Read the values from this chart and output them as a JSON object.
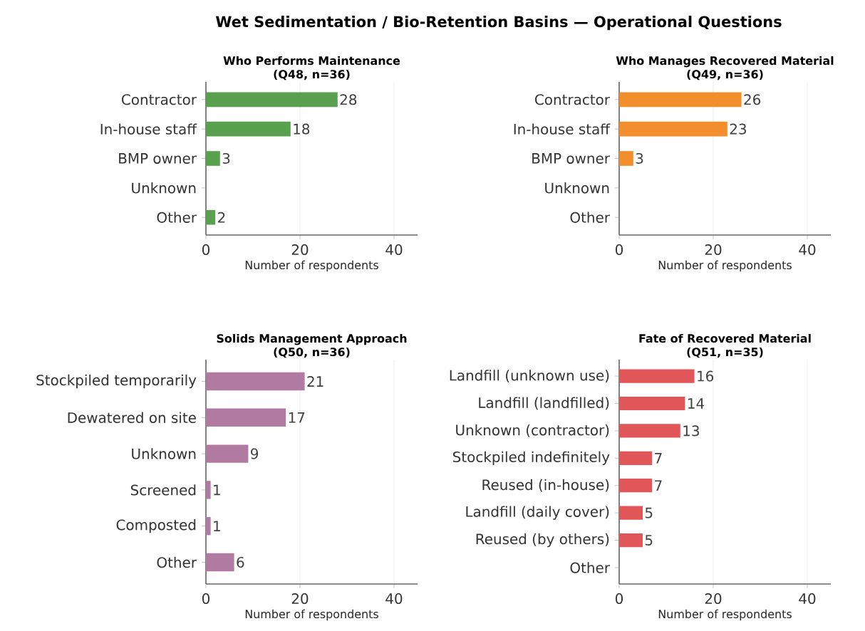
{
  "chart_data": [
    {
      "type": "other",
      "title": "Wet Sedimentation / Bio-Retention Basins — Operational Questions"
    },
    {
      "type": "bar",
      "orientation": "horizontal",
      "title": "Who Performs Maintenance",
      "subtitle": "(Q48, n=36)",
      "xlabel": "Number of respondents",
      "categories": [
        "Contractor",
        "In-house staff",
        "BMP owner",
        "Unknown",
        "Other"
      ],
      "values": [
        28,
        18,
        3,
        0,
        2
      ],
      "value_labels": [
        "28",
        "18",
        "3",
        null,
        "2"
      ],
      "color": "#59a14f",
      "xlim": [
        0,
        45
      ],
      "xticks": [
        0,
        20,
        40
      ],
      "grid": "x"
    },
    {
      "type": "bar",
      "orientation": "horizontal",
      "title": "Who Manages Recovered Material",
      "subtitle": "(Q49, n=36)",
      "xlabel": "Number of respondents",
      "categories": [
        "Contractor",
        "In-house staff",
        "BMP owner",
        "Unknown",
        "Other"
      ],
      "values": [
        26,
        23,
        3,
        0,
        0
      ],
      "value_labels": [
        "26",
        "23",
        "3",
        null,
        null
      ],
      "color": "#f28e2b",
      "xlim": [
        0,
        45
      ],
      "xticks": [
        0,
        20,
        40
      ],
      "grid": "x"
    },
    {
      "type": "bar",
      "orientation": "horizontal",
      "title": "Solids Management Approach",
      "subtitle": "(Q50, n=36)",
      "xlabel": "Number of respondents",
      "categories": [
        "Stockpiled temporarily",
        "Dewatered on site",
        "Unknown",
        "Screened",
        "Composted",
        "Other"
      ],
      "values": [
        21,
        17,
        9,
        1,
        1,
        6
      ],
      "value_labels": [
        "21",
        "17",
        "9",
        "1",
        "1",
        "6"
      ],
      "color": "#b07aa1",
      "xlim": [
        0,
        45
      ],
      "xticks": [
        0,
        20,
        40
      ],
      "grid": "x"
    },
    {
      "type": "bar",
      "orientation": "horizontal",
      "title": "Fate of Recovered Material",
      "subtitle": "(Q51, n=35)",
      "xlabel": "Number of respondents",
      "categories": [
        "Landfill (unknown use)",
        "Landfill (landfilled)",
        "Unknown (contractor)",
        "Stockpiled indefinitely",
        "Reused (in-house)",
        "Landfill (daily cover)",
        "Reused (by others)",
        "Other"
      ],
      "values": [
        16,
        14,
        13,
        7,
        7,
        5,
        5,
        0
      ],
      "value_labels": [
        "16",
        "14",
        "13",
        "7",
        "7",
        "5",
        "5",
        null
      ],
      "color": "#e15759",
      "xlim": [
        0,
        45
      ],
      "xticks": [
        0,
        20,
        40
      ],
      "grid": "x"
    }
  ]
}
